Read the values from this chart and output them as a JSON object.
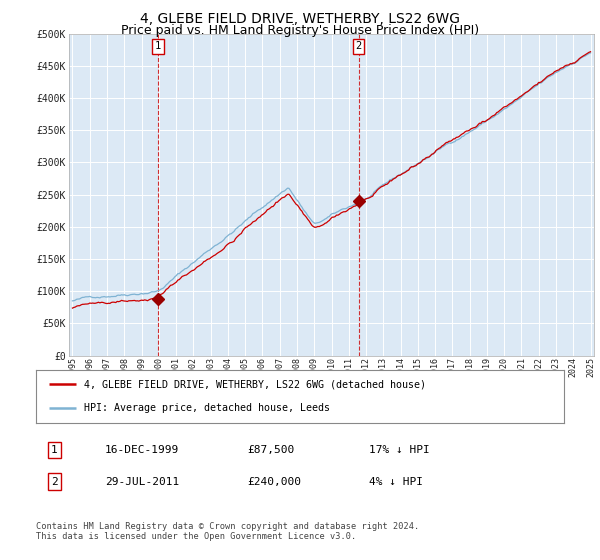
{
  "title": "4, GLEBE FIELD DRIVE, WETHERBY, LS22 6WG",
  "subtitle": "Price paid vs. HM Land Registry's House Price Index (HPI)",
  "title_fontsize": 10,
  "subtitle_fontsize": 9,
  "bg_color": "#ffffff",
  "plot_bg_color": "#dce9f5",
  "grid_color": "#ffffff",
  "x_start_year": 1995,
  "x_end_year": 2025,
  "ylim": [
    0,
    500000
  ],
  "yticks": [
    0,
    50000,
    100000,
    150000,
    200000,
    250000,
    300000,
    350000,
    400000,
    450000,
    500000
  ],
  "sale1_year": 1999.96,
  "sale1_price": 87500,
  "sale2_year": 2011.57,
  "sale2_price": 240000,
  "sale1_label": "1",
  "sale2_label": "2",
  "red_line_color": "#cc0000",
  "blue_line_color": "#7fb3d3",
  "legend_red_label": "4, GLEBE FIELD DRIVE, WETHERBY, LS22 6WG (detached house)",
  "legend_blue_label": "HPI: Average price, detached house, Leeds",
  "table_row1": [
    "1",
    "16-DEC-1999",
    "£87,500",
    "17% ↓ HPI"
  ],
  "table_row2": [
    "2",
    "29-JUL-2011",
    "£240,000",
    "4% ↓ HPI"
  ],
  "footnote": "Contains HM Land Registry data © Crown copyright and database right 2024.\nThis data is licensed under the Open Government Licence v3.0.",
  "marker_color": "#990000"
}
